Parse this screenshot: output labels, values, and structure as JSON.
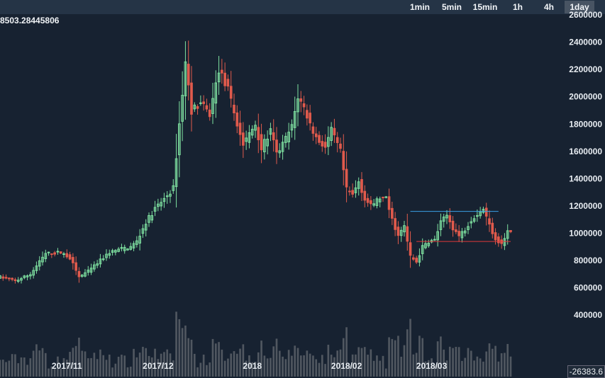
{
  "toolbar": {
    "timeframes": [
      "1min",
      "5min",
      "15min",
      "1h",
      "4h",
      "1day"
    ],
    "active": "1day"
  },
  "price_readout": "8503.28445806",
  "last_value_box": "-26383.6",
  "colors": {
    "background": "#172231",
    "toolbar": "#253446",
    "up": "#7ee0a0",
    "down": "#e05a4c",
    "volume": "#5a6068",
    "resistance_line": "#3aa0e6",
    "support_line": "#e03a3a",
    "axis_text": "#e8edf2"
  },
  "chart_data": {
    "type": "candlestick",
    "y_axis": {
      "ticks": [
        "2600000",
        "2400000",
        "2200000",
        "2000000",
        "1800000",
        "1600000",
        "1400000",
        "1200000",
        "1000000",
        "800000",
        "600000",
        "400000"
      ],
      "ylim": [
        -50000,
        2600000
      ],
      "side": "right"
    },
    "x_axis": {
      "labels": [
        {
          "label": "2017/11",
          "date": "2017-11-01"
        },
        {
          "label": "2017/12",
          "date": "2017-12-01"
        },
        {
          "label": "2018",
          "date": "2018-01-01"
        },
        {
          "label": "2018/02",
          "date": "2018-02-01"
        },
        {
          "label": "2018/03",
          "date": "2018-03-01"
        }
      ],
      "xlim": [
        "2017-10-10",
        "2018-03-27"
      ]
    },
    "grid": false,
    "horizontal_lines": [
      {
        "name": "resistance",
        "y": 1160000,
        "x_start": "2018-02-22",
        "x_end": "2018-03-23",
        "color": "#3aa0e6"
      },
      {
        "name": "support",
        "y": 940000,
        "x_start": "2018-02-24",
        "x_end": "2018-03-27",
        "color": "#e03a3a"
      }
    ],
    "trend": [
      [
        "2017-10-10",
        680000
      ],
      [
        "2017-10-15",
        650000
      ],
      [
        "2017-10-20",
        700000
      ],
      [
        "2017-10-25",
        850000
      ],
      [
        "2017-10-30",
        860000
      ],
      [
        "2017-11-02",
        820000
      ],
      [
        "2017-11-05",
        680000
      ],
      [
        "2017-11-08",
        720000
      ],
      [
        "2017-11-12",
        800000
      ],
      [
        "2017-11-15",
        860000
      ],
      [
        "2017-11-18",
        880000
      ],
      [
        "2017-11-22",
        900000
      ],
      [
        "2017-11-24",
        940000
      ],
      [
        "2017-11-27",
        1080000
      ],
      [
        "2017-11-30",
        1180000
      ],
      [
        "2017-12-03",
        1250000
      ],
      [
        "2017-12-06",
        1330000
      ],
      [
        "2017-12-08",
        1800000
      ],
      [
        "2017-12-10",
        2250000
      ],
      [
        "2017-12-12",
        1900000
      ],
      [
        "2017-12-15",
        1950000
      ],
      [
        "2017-12-18",
        1870000
      ],
      [
        "2017-12-21",
        2200000
      ],
      [
        "2017-12-24",
        2050000
      ],
      [
        "2017-12-27",
        1800000
      ],
      [
        "2017-12-29",
        1650000
      ],
      [
        "2018-01-02",
        1800000
      ],
      [
        "2018-01-04",
        1620000
      ],
      [
        "2018-01-07",
        1750000
      ],
      [
        "2018-01-09",
        1580000
      ],
      [
        "2018-01-11",
        1650000
      ],
      [
        "2018-01-14",
        1780000
      ],
      [
        "2018-01-16",
        2000000
      ],
      [
        "2018-01-18",
        1920000
      ],
      [
        "2018-01-20",
        1800000
      ],
      [
        "2018-01-22",
        1700000
      ],
      [
        "2018-01-25",
        1630000
      ],
      [
        "2018-01-27",
        1750000
      ],
      [
        "2018-01-30",
        1600000
      ],
      [
        "2018-02-01",
        1320000
      ],
      [
        "2018-02-03",
        1280000
      ],
      [
        "2018-02-05",
        1380000
      ],
      [
        "2018-02-07",
        1250000
      ],
      [
        "2018-02-09",
        1200000
      ],
      [
        "2018-02-12",
        1260000
      ],
      [
        "2018-02-14",
        1250000
      ],
      [
        "2018-02-16",
        1100000
      ],
      [
        "2018-02-18",
        980000
      ],
      [
        "2018-02-20",
        1050000
      ],
      [
        "2018-02-22",
        830000
      ],
      [
        "2018-02-24",
        790000
      ],
      [
        "2018-02-26",
        900000
      ],
      [
        "2018-02-28",
        940000
      ],
      [
        "2018-03-02",
        950000
      ],
      [
        "2018-03-04",
        1080000
      ],
      [
        "2018-03-06",
        1130000
      ],
      [
        "2018-03-08",
        1040000
      ],
      [
        "2018-03-10",
        980000
      ],
      [
        "2018-03-12",
        1030000
      ],
      [
        "2018-03-14",
        1100000
      ],
      [
        "2018-03-16",
        1140000
      ],
      [
        "2018-03-18",
        1180000
      ],
      [
        "2018-03-20",
        1060000
      ],
      [
        "2018-03-22",
        960000
      ],
      [
        "2018-03-24",
        920000
      ],
      [
        "2018-03-26",
        1010000
      ]
    ],
    "volume_max_ratio": 0.19
  }
}
